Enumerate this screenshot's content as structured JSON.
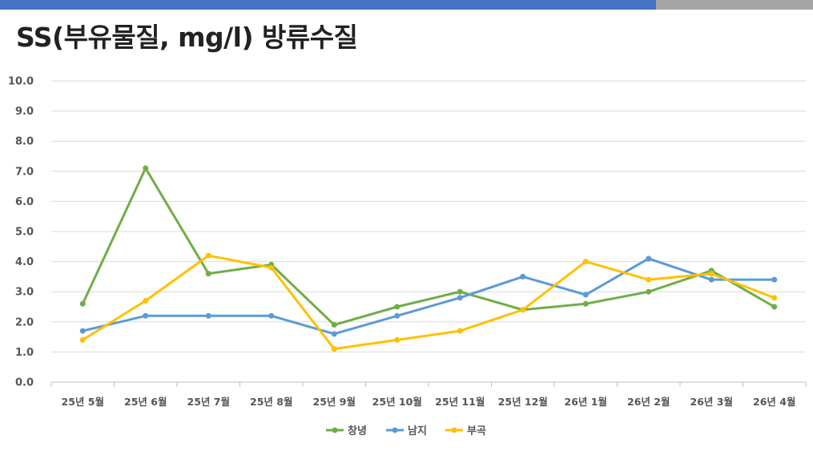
{
  "title": "SS(부유물질, mg/l) 방류수질",
  "colors": {
    "topbar_primary": "#4472C4",
    "topbar_secondary": "#A5A5A5"
  },
  "chart_data": {
    "type": "line",
    "title": "SS(부유물질, mg/l) 방류수질",
    "xlabel": "",
    "ylabel": "",
    "categories": [
      "25년 5월",
      "25년 6월",
      "25년 7월",
      "25년 8월",
      "25년 9월",
      "25년 10월",
      "25년 11월",
      "25년 12월",
      "26년 1월",
      "26년 2월",
      "26년 3월",
      "26년 4월"
    ],
    "ylim": [
      0,
      10
    ],
    "yticks": [
      "0.0",
      "1.0",
      "2.0",
      "3.0",
      "4.0",
      "5.0",
      "6.0",
      "7.0",
      "8.0",
      "9.0",
      "10.0"
    ],
    "grid": true,
    "legend_position": "bottom",
    "series": [
      {
        "name": "창녕",
        "color": "#70AD47",
        "values": [
          2.6,
          7.1,
          3.6,
          3.9,
          1.9,
          2.5,
          3.0,
          2.4,
          2.6,
          3.0,
          3.7,
          2.5
        ]
      },
      {
        "name": "남지",
        "color": "#5B9BD5",
        "values": [
          1.7,
          2.2,
          2.2,
          2.2,
          1.6,
          2.2,
          2.8,
          3.5,
          2.9,
          4.1,
          3.4,
          3.4
        ]
      },
      {
        "name": "부곡",
        "color": "#FFC000",
        "values": [
          1.4,
          2.7,
          4.2,
          3.8,
          1.1,
          1.4,
          1.7,
          2.4,
          4.0,
          3.4,
          3.6,
          2.8
        ]
      }
    ]
  }
}
